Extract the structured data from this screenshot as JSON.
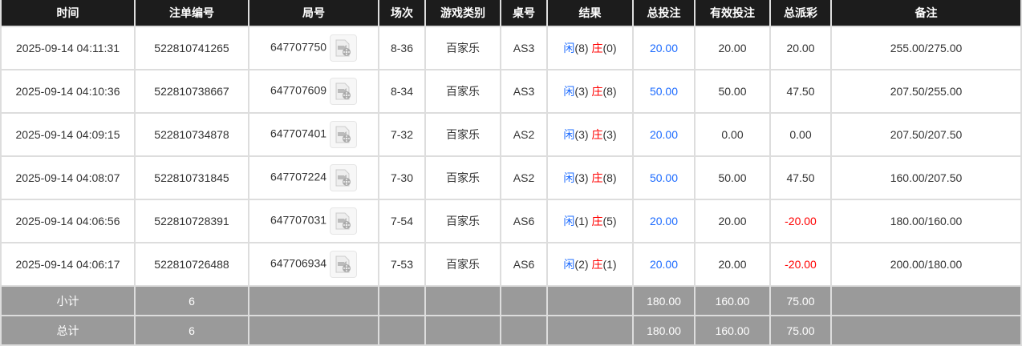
{
  "headers": [
    "时间",
    "注单编号",
    "局号",
    "场次",
    "游戏类别",
    "桌号",
    "结果",
    "总投注",
    "有效投注",
    "总派彩",
    "备注"
  ],
  "rows": [
    {
      "time": "2025-09-14 04:11:31",
      "order": "522810741265",
      "round": "647707750",
      "session": "8-36",
      "game": "百家乐",
      "table": "AS3",
      "player_label": "闲",
      "player": "(8)",
      "banker_label": "庄",
      "banker": "(0)",
      "bet": "20.00",
      "valid": "20.00",
      "payout": "20.00",
      "payout_negative": false,
      "note": "255.00/275.00"
    },
    {
      "time": "2025-09-14 04:10:36",
      "order": "522810738667",
      "round": "647707609",
      "session": "8-34",
      "game": "百家乐",
      "table": "AS3",
      "player_label": "闲",
      "player": "(3)",
      "banker_label": "庄",
      "banker": "(8)",
      "bet": "50.00",
      "valid": "50.00",
      "payout": "47.50",
      "payout_negative": false,
      "note": "207.50/255.00"
    },
    {
      "time": "2025-09-14 04:09:15",
      "order": "522810734878",
      "round": "647707401",
      "session": "7-32",
      "game": "百家乐",
      "table": "AS2",
      "player_label": "闲",
      "player": "(3)",
      "banker_label": "庄",
      "banker": "(3)",
      "bet": "20.00",
      "valid": "0.00",
      "payout": "0.00",
      "payout_negative": false,
      "note": "207.50/207.50"
    },
    {
      "time": "2025-09-14 04:08:07",
      "order": "522810731845",
      "round": "647707224",
      "session": "7-30",
      "game": "百家乐",
      "table": "AS2",
      "player_label": "闲",
      "player": "(3)",
      "banker_label": "庄",
      "banker": "(8)",
      "bet": "50.00",
      "valid": "50.00",
      "payout": "47.50",
      "payout_negative": false,
      "note": "160.00/207.50"
    },
    {
      "time": "2025-09-14 04:06:56",
      "order": "522810728391",
      "round": "647707031",
      "session": "7-54",
      "game": "百家乐",
      "table": "AS6",
      "player_label": "闲",
      "player": "(1)",
      "banker_label": "庄",
      "banker": "(5)",
      "bet": "20.00",
      "valid": "20.00",
      "payout": "-20.00",
      "payout_negative": true,
      "note": "180.00/160.00"
    },
    {
      "time": "2025-09-14 04:06:17",
      "order": "522810726488",
      "round": "647706934",
      "session": "7-53",
      "game": "百家乐",
      "table": "AS6",
      "player_label": "闲",
      "player": "(2)",
      "banker_label": "庄",
      "banker": "(1)",
      "bet": "20.00",
      "valid": "20.00",
      "payout": "-20.00",
      "payout_negative": true,
      "note": "200.00/180.00"
    }
  ],
  "summary": [
    {
      "label": "小计",
      "count": "6",
      "bet": "180.00",
      "valid": "160.00",
      "payout": "75.00"
    },
    {
      "label": "总计",
      "count": "6",
      "bet": "180.00",
      "valid": "160.00",
      "payout": "75.00"
    }
  ],
  "icons": {
    "video": "video-replay-icon"
  },
  "colors": {
    "header": "#1c1c1c",
    "summary": "#9a9a9a",
    "blue": "#1e6cff",
    "red": "#ff0000"
  }
}
